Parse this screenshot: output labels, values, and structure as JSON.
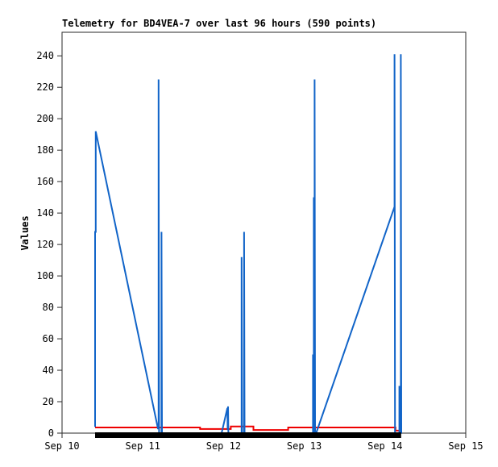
{
  "window": {
    "background": "#ffffff"
  },
  "chart_data": {
    "type": "line",
    "title": "Telemetry for BD4VEA-7 over last 96 hours (590 points)",
    "xlabel": "",
    "ylabel": "Values",
    "x_unit": "days after Sep 10 00:00",
    "xlim": [
      0,
      5
    ],
    "ylim": [
      0,
      255
    ],
    "grid": false,
    "legend": "none",
    "border_color": "#2a2a2a",
    "tick_color": "#2a2a2a",
    "x_tick_positions": [
      0,
      1,
      2,
      3,
      4,
      5
    ],
    "x_tick_labels": [
      "Sep 10",
      "Sep 11",
      "Sep 12",
      "Sep 13",
      "Sep 14",
      "Sep 15"
    ],
    "y_ticks": [
      0,
      20,
      40,
      60,
      80,
      100,
      120,
      140,
      160,
      180,
      200,
      220,
      240
    ],
    "series": [
      {
        "name": "red-baseline",
        "color": "#ee0000",
        "width": 2,
        "points": [
          [
            0.409,
            3.6
          ],
          [
            1.71,
            3.6
          ],
          [
            1.71,
            2.6
          ],
          [
            2.09,
            2.6
          ],
          [
            2.09,
            4.2
          ],
          [
            2.37,
            4.2
          ],
          [
            2.37,
            2.0
          ],
          [
            2.8,
            2.0
          ],
          [
            2.8,
            3.6
          ],
          [
            4.13,
            3.6
          ],
          [
            4.13,
            1.6
          ],
          [
            4.2,
            1.6
          ]
        ]
      },
      {
        "name": "blue-values",
        "color": "#1164c8",
        "width": 2,
        "points": [
          [
            0.409,
            4
          ],
          [
            0.409,
            128
          ],
          [
            0.417,
            128
          ],
          [
            0.417,
            192
          ],
          [
            1.188,
            3
          ],
          [
            1.196,
            3
          ],
          [
            1.196,
            225
          ],
          [
            1.202,
            0
          ],
          [
            1.232,
            0
          ],
          [
            1.232,
            128
          ],
          [
            1.238,
            0
          ],
          [
            1.976,
            0
          ],
          [
            2.048,
            16
          ],
          [
            2.051,
            2
          ],
          [
            2.056,
            17
          ],
          [
            2.06,
            0
          ],
          [
            2.224,
            0
          ],
          [
            2.224,
            112
          ],
          [
            2.23,
            0
          ],
          [
            2.254,
            0
          ],
          [
            2.254,
            128
          ],
          [
            2.26,
            0
          ],
          [
            3.108,
            0
          ],
          [
            3.108,
            50
          ],
          [
            3.114,
            0
          ],
          [
            3.118,
            0
          ],
          [
            3.118,
            150
          ],
          [
            3.124,
            0
          ],
          [
            3.128,
            0
          ],
          [
            3.128,
            225
          ],
          [
            3.134,
            1
          ],
          [
            3.154,
            1
          ],
          [
            4.118,
            144
          ],
          [
            4.118,
            241
          ],
          [
            4.124,
            0
          ],
          [
            4.178,
            0
          ],
          [
            4.178,
            30
          ],
          [
            4.184,
            0
          ],
          [
            4.196,
            0
          ],
          [
            4.196,
            241
          ],
          [
            4.202,
            0
          ]
        ]
      },
      {
        "name": "black-baseline",
        "color": "#000000",
        "width": 7,
        "points": [
          [
            0.409,
            0
          ],
          [
            4.2,
            0
          ]
        ]
      }
    ]
  }
}
